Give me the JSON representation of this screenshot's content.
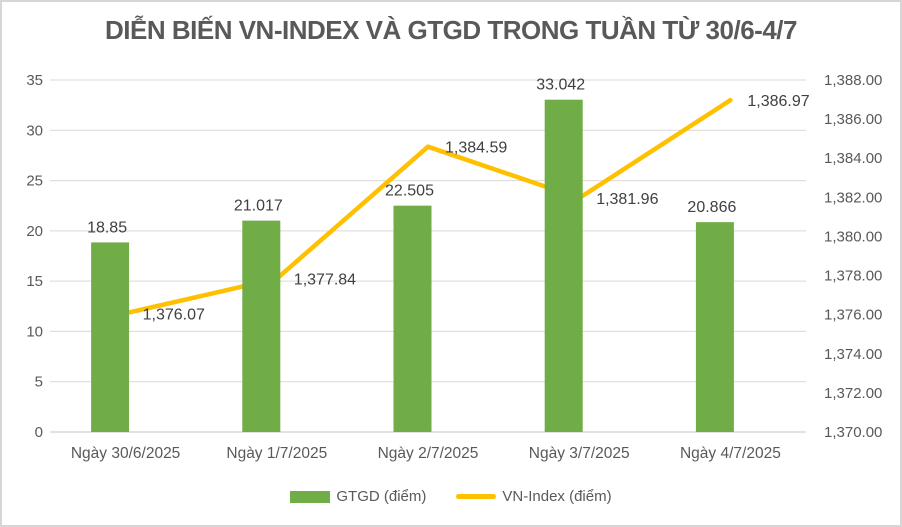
{
  "chart_data": {
    "type": "combo",
    "title": "DIỄN BIẾN VN-INDEX VÀ GTGD TRONG TUẦN TỪ 30/6-4/7",
    "categories": [
      "Ngày 30/6/2025",
      "Ngày 1/7/2025",
      "Ngày 2/7/2025",
      "Ngày 3/7/2025",
      "Ngày 4/7/2025"
    ],
    "series": [
      {
        "name": "GTGD (điểm)",
        "type": "bar",
        "axis": "left",
        "color": "#70AD47",
        "values": [
          18.85,
          21.017,
          22.505,
          33.042,
          20.866
        ],
        "labels": [
          "18.85",
          "21.017",
          "22.505",
          "33.042",
          "20.866"
        ]
      },
      {
        "name": "VN-Index (điểm)",
        "type": "line",
        "axis": "right",
        "color": "#FFC000",
        "values": [
          1376.07,
          1377.84,
          1384.59,
          1381.96,
          1386.97
        ],
        "labels": [
          "1,376.07",
          "1,377.84",
          "1,384.59",
          "1,381.96",
          "1,386.97"
        ]
      }
    ],
    "left_axis": {
      "min": 0,
      "max": 35,
      "step": 5,
      "ticks": [
        "0",
        "5",
        "10",
        "15",
        "20",
        "25",
        "30",
        "35"
      ]
    },
    "right_axis": {
      "min": 1370,
      "max": 1388,
      "step": 2,
      "ticks": [
        "1,370.00",
        "1,372.00",
        "1,374.00",
        "1,376.00",
        "1,378.00",
        "1,380.00",
        "1,382.00",
        "1,384.00",
        "1,386.00",
        "1,388.00"
      ]
    },
    "legend_position": "bottom",
    "grid": "horizontal",
    "colors": {
      "gridline": "#D9D9D9",
      "axis_line": "#C6C6C6",
      "axis_text": "#595959",
      "data_label_text": "#404040",
      "background": "#FFFFFF",
      "frame_border": "#D6D6D6"
    }
  }
}
